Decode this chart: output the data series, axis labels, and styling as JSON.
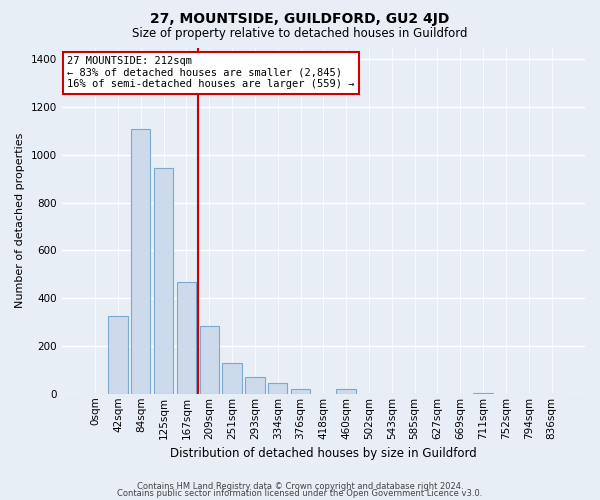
{
  "title": "27, MOUNTSIDE, GUILDFORD, GU2 4JD",
  "subtitle": "Size of property relative to detached houses in Guildford",
  "xlabel": "Distribution of detached houses by size in Guildford",
  "ylabel": "Number of detached properties",
  "bar_labels": [
    "0sqm",
    "42sqm",
    "84sqm",
    "125sqm",
    "167sqm",
    "209sqm",
    "251sqm",
    "293sqm",
    "334sqm",
    "376sqm",
    "418sqm",
    "460sqm",
    "502sqm",
    "543sqm",
    "585sqm",
    "627sqm",
    "669sqm",
    "711sqm",
    "752sqm",
    "794sqm",
    "836sqm"
  ],
  "bar_values": [
    0,
    325,
    1110,
    945,
    470,
    285,
    130,
    70,
    47,
    20,
    0,
    20,
    0,
    0,
    0,
    0,
    0,
    5,
    0,
    0,
    0
  ],
  "bar_color": "#ccdaeb",
  "bar_edge_color": "#7aaad0",
  "vline_index": 5,
  "vline_color": "#cc0000",
  "annotation_text": "27 MOUNTSIDE: 212sqm\n← 83% of detached houses are smaller (2,845)\n16% of semi-detached houses are larger (559) →",
  "annotation_box_facecolor": "#ffffff",
  "annotation_box_edgecolor": "#cc0000",
  "ylim": [
    0,
    1450
  ],
  "yticks": [
    0,
    200,
    400,
    600,
    800,
    1000,
    1200,
    1400
  ],
  "footer_line1": "Contains HM Land Registry data © Crown copyright and database right 2024.",
  "footer_line2": "Contains public sector information licensed under the Open Government Licence v3.0.",
  "bg_color": "#e8eef6",
  "grid_color": "#ffffff",
  "title_fontsize": 10,
  "subtitle_fontsize": 8.5,
  "ylabel_fontsize": 8,
  "xlabel_fontsize": 8.5,
  "tick_fontsize": 7.5,
  "footer_fontsize": 6
}
